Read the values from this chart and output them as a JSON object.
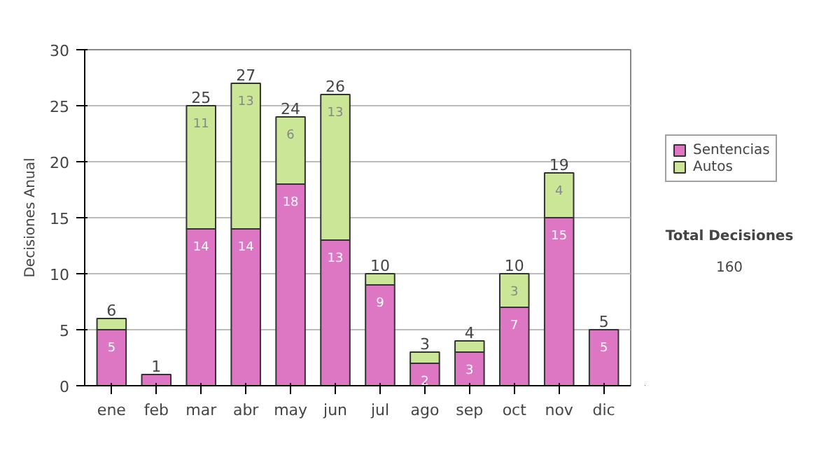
{
  "chart_data": {
    "type": "bar",
    "stacked": true,
    "ylabel": "Decisiones Anual",
    "categories": [
      "ene",
      "feb",
      "mar",
      "abr",
      "may",
      "jun",
      "jul",
      "ago",
      "sep",
      "oct",
      "nov",
      "dic"
    ],
    "series": [
      {
        "name": "Sentencias",
        "color": "#dd77c3",
        "values": [
          5,
          1,
          14,
          14,
          18,
          13,
          9,
          2,
          3,
          7,
          15,
          5
        ],
        "value_labels": [
          "5",
          null,
          "14",
          "14",
          "18",
          "13",
          "9",
          "2",
          "3",
          "7",
          "15",
          "5"
        ]
      },
      {
        "name": "Autos",
        "color": "#cce698",
        "values": [
          1,
          null,
          11,
          13,
          6,
          13,
          1,
          1,
          1,
          3,
          4,
          null
        ],
        "value_labels": [
          null,
          null,
          "11",
          "13",
          "6",
          "13",
          null,
          null,
          null,
          "3",
          "4",
          null
        ]
      }
    ],
    "totals": [
      "6",
      "1",
      "25",
      "27",
      "24",
      "26",
      "10",
      "3",
      "4",
      "10",
      "19",
      "5"
    ],
    "ylim": [
      0,
      30
    ],
    "yticks": [
      0,
      5,
      10,
      15,
      20,
      25,
      30
    ],
    "grid": "y",
    "legend": "right",
    "annotations": [
      "Total Decisiones",
      "160"
    ]
  }
}
